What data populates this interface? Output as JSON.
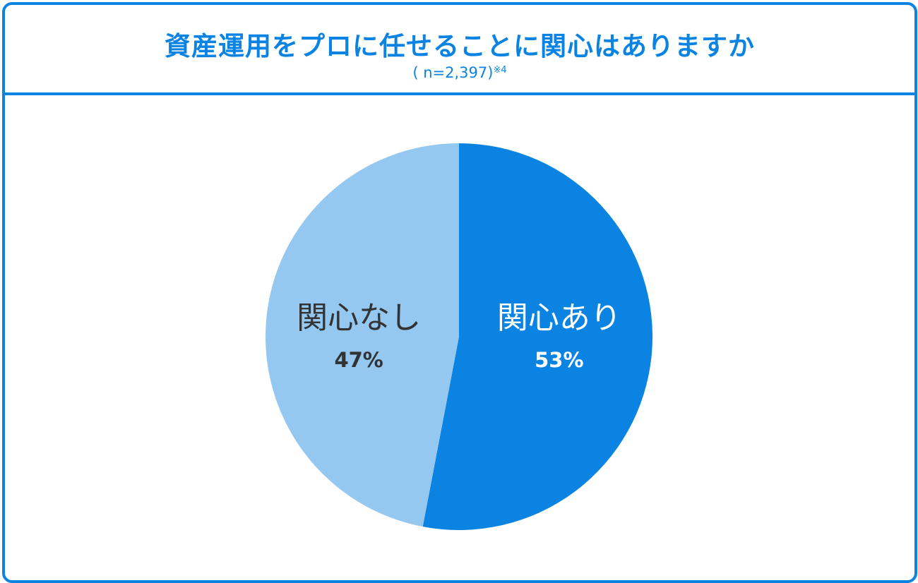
{
  "header": {
    "title": "資産運用をプロに任せることに関心はありますか",
    "sample_size": "( n=2,397)",
    "footnote": "※4"
  },
  "colors": {
    "accent": "#0b83e2",
    "slice_yes": "#0b83e2",
    "slice_no": "#94c8f0",
    "label_on_dark": "#ffffff",
    "label_on_light": "#333333"
  },
  "chart_data": {
    "type": "pie",
    "title": "資産運用をプロに任せることに関心はありますか",
    "slices": [
      {
        "label": "関心あり",
        "value": 53,
        "value_label": "53%"
      },
      {
        "label": "関心なし",
        "value": 47,
        "value_label": "47%"
      }
    ],
    "start": "12 o'clock",
    "direction": "clockwise",
    "legend": "none"
  }
}
